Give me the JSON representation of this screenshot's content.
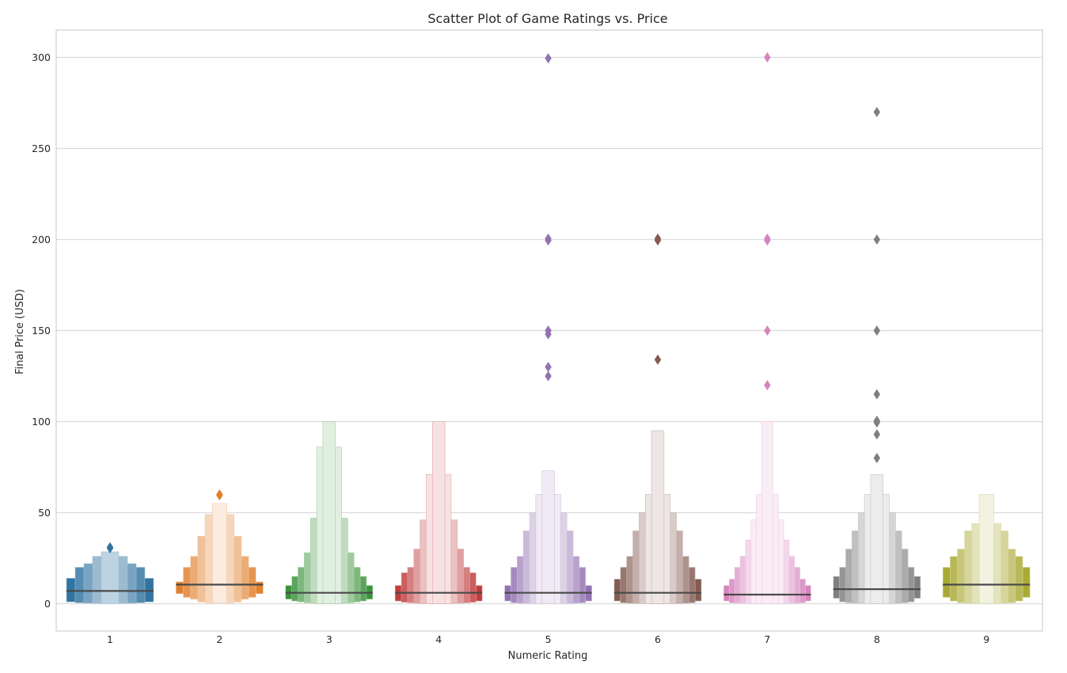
{
  "chart_data": {
    "type": "boxen",
    "title": "Scatter Plot of Game Ratings vs. Price",
    "xlabel": "Numeric Rating",
    "ylabel": "Final Price (USD)",
    "categories": [
      "1",
      "2",
      "3",
      "4",
      "5",
      "6",
      "7",
      "8",
      "9"
    ],
    "ylim": [
      -15,
      315
    ],
    "yticks": [
      0,
      50,
      100,
      150,
      200,
      250,
      300
    ],
    "grid": true,
    "colors": [
      "#3274a1",
      "#e1812c",
      "#3a923a",
      "#c03d3e",
      "#9372b2",
      "#845b53",
      "#d684bd",
      "#7f7f7f",
      "#a9aa35"
    ],
    "series": [
      {
        "category": "1",
        "median": 7,
        "letter_values": [
          [
            1,
            14
          ],
          [
            0.5,
            20
          ],
          [
            0.3,
            22
          ],
          [
            0.2,
            26
          ],
          [
            0.1,
            28.5
          ]
        ],
        "outliers": [
          30.5,
          31
        ]
      },
      {
        "category": "2",
        "median": 10.5,
        "letter_values": [
          [
            5.5,
            12
          ],
          [
            3.5,
            20
          ],
          [
            2.5,
            26
          ],
          [
            1,
            37
          ],
          [
            0.5,
            49
          ],
          [
            0.3,
            55
          ]
        ],
        "outliers": [
          59.5,
          60
        ]
      },
      {
        "category": "3",
        "median": 6,
        "letter_values": [
          [
            2.5,
            10
          ],
          [
            1.5,
            15
          ],
          [
            1,
            20
          ],
          [
            0.5,
            28
          ],
          [
            0.3,
            47
          ],
          [
            0.1,
            86
          ],
          [
            0.05,
            100
          ]
        ],
        "outliers": []
      },
      {
        "category": "4",
        "median": 6,
        "letter_values": [
          [
            1.5,
            10
          ],
          [
            0.8,
            17
          ],
          [
            0.5,
            20
          ],
          [
            0.3,
            30
          ],
          [
            0.2,
            46
          ],
          [
            0.1,
            71
          ],
          [
            0.05,
            100
          ]
        ],
        "outliers": []
      },
      {
        "category": "5",
        "median": 6,
        "letter_values": [
          [
            1.5,
            10
          ],
          [
            0.5,
            20
          ],
          [
            0.3,
            26
          ],
          [
            0.2,
            40
          ],
          [
            0.1,
            50
          ],
          [
            0.05,
            60
          ],
          [
            0.02,
            73
          ]
        ],
        "outliers": [
          125,
          130,
          148,
          150,
          199.5,
          200.5,
          299.5
        ]
      },
      {
        "category": "6",
        "median": 6,
        "letter_values": [
          [
            1.5,
            13.5
          ],
          [
            0.5,
            20
          ],
          [
            0.3,
            26
          ],
          [
            0.2,
            40
          ],
          [
            0.1,
            50
          ],
          [
            0.05,
            60
          ],
          [
            0.02,
            95
          ]
        ],
        "outliers": [
          134,
          199.5,
          200.5
        ]
      },
      {
        "category": "7",
        "median": 5,
        "letter_values": [
          [
            1.5,
            10
          ],
          [
            0.5,
            13.5
          ],
          [
            0.3,
            20
          ],
          [
            0.2,
            26
          ],
          [
            0.1,
            35
          ],
          [
            0.05,
            46
          ],
          [
            0.02,
            60
          ],
          [
            0.01,
            100
          ]
        ],
        "outliers": [
          120,
          150,
          199.5,
          200.5,
          300
        ]
      },
      {
        "category": "8",
        "median": 8,
        "letter_values": [
          [
            3,
            15
          ],
          [
            1,
            20
          ],
          [
            0.5,
            30
          ],
          [
            0.3,
            40
          ],
          [
            0.2,
            50
          ],
          [
            0.1,
            60
          ],
          [
            0.05,
            71
          ]
        ],
        "outliers": [
          80,
          93,
          99.5,
          100.5,
          115,
          150,
          200,
          270
        ]
      },
      {
        "category": "9",
        "median": 10.5,
        "letter_values": [
          [
            3.5,
            20
          ],
          [
            1.5,
            26
          ],
          [
            0.5,
            30
          ],
          [
            0.3,
            40
          ],
          [
            0.2,
            44
          ],
          [
            0.1,
            60
          ]
        ],
        "outliers": []
      }
    ]
  }
}
